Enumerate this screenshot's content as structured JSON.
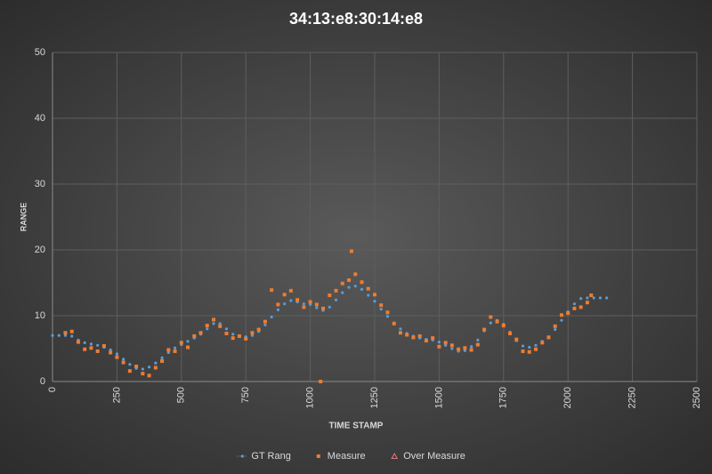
{
  "chart_data": {
    "type": "scatter",
    "title": "34:13:e8:30:14:e8",
    "x_label": "TIME STAMP",
    "y_label": "RANGE",
    "xlim": [
      0,
      2500
    ],
    "xticks": [
      0,
      250,
      500,
      750,
      1000,
      1250,
      1500,
      1750,
      2000,
      2250,
      2500
    ],
    "ylim": [
      0,
      50
    ],
    "yticks": [
      0,
      10,
      20,
      30,
      40,
      50
    ],
    "grid": true,
    "legend": "bottom",
    "series": [
      {
        "name": "GT Rang",
        "color": "#5b9bd5",
        "marker": "circle",
        "x": [
          0,
          25,
          50,
          75,
          100,
          125,
          150,
          175,
          200,
          225,
          250,
          275,
          300,
          325,
          350,
          375,
          400,
          425,
          450,
          475,
          500,
          525,
          550,
          575,
          600,
          625,
          650,
          675,
          700,
          725,
          750,
          775,
          800,
          825,
          850,
          875,
          900,
          925,
          950,
          975,
          1000,
          1025,
          1050,
          1075,
          1100,
          1125,
          1150,
          1175,
          1200,
          1225,
          1250,
          1275,
          1300,
          1325,
          1350,
          1375,
          1400,
          1425,
          1450,
          1475,
          1500,
          1525,
          1550,
          1575,
          1600,
          1625,
          1650,
          1675,
          1700,
          1725,
          1750,
          1775,
          1800,
          1825,
          1850,
          1875,
          1900,
          1925,
          1950,
          1975,
          2000,
          2025,
          2050,
          2075,
          2100,
          2125,
          2150
        ],
        "values": [
          7,
          7,
          7,
          6.9,
          6.3,
          5.9,
          5.7,
          5.5,
          5.2,
          4.8,
          4.2,
          3.4,
          2.6,
          2.0,
          1.9,
          2.2,
          2.8,
          3.6,
          4.4,
          5.1,
          5.6,
          6.1,
          6.6,
          7.2,
          8.0,
          8.8,
          8.8,
          8.0,
          7.2,
          6.8,
          6.8,
          7.0,
          7.6,
          8.6,
          9.8,
          10.9,
          11.8,
          12.3,
          12.1,
          11.8,
          11.7,
          11.2,
          10.8,
          11.3,
          12.4,
          13.5,
          14.3,
          14.5,
          14.0,
          13.1,
          12.2,
          11.0,
          9.9,
          8.9,
          8.0,
          7.3,
          6.9,
          6.6,
          6.4,
          6.3,
          6.0,
          5.5,
          5.0,
          4.6,
          4.7,
          5.3,
          6.3,
          7.7,
          8.9,
          9.3,
          8.7,
          7.5,
          6.2,
          5.4,
          5.2,
          5.5,
          6.1,
          6.8,
          7.9,
          9.3,
          10.6,
          11.8,
          12.6,
          12.7,
          12.7,
          12.7,
          12.7
        ]
      },
      {
        "name": "Measure",
        "color": "#ed7d31",
        "marker": "square",
        "x": [
          50,
          75,
          100,
          125,
          150,
          175,
          200,
          225,
          250,
          275,
          300,
          325,
          350,
          375,
          400,
          425,
          450,
          475,
          500,
          525,
          550,
          575,
          600,
          625,
          650,
          675,
          700,
          725,
          750,
          775,
          800,
          825,
          850,
          875,
          900,
          925,
          950,
          975,
          1000,
          1025,
          1040,
          1050,
          1075,
          1100,
          1125,
          1150,
          1160,
          1175,
          1200,
          1225,
          1250,
          1275,
          1300,
          1325,
          1350,
          1375,
          1400,
          1425,
          1450,
          1475,
          1500,
          1525,
          1550,
          1575,
          1600,
          1625,
          1650,
          1675,
          1700,
          1725,
          1750,
          1775,
          1800,
          1825,
          1850,
          1875,
          1900,
          1925,
          1950,
          1975,
          2000,
          2025,
          2050,
          2075,
          2090
        ],
        "values": [
          7.4,
          7.6,
          6.0,
          4.9,
          5.1,
          4.6,
          5.4,
          4.4,
          3.7,
          2.9,
          1.6,
          2.3,
          1.2,
          0.9,
          2.1,
          3.1,
          4.8,
          4.6,
          5.9,
          5.2,
          6.9,
          7.4,
          8.5,
          9.4,
          8.4,
          7.3,
          6.6,
          6.9,
          6.5,
          7.4,
          7.9,
          9.1,
          13.9,
          11.7,
          13.2,
          13.8,
          12.4,
          11.3,
          12.1,
          11.7,
          0,
          11.1,
          13.1,
          13.8,
          14.9,
          15.4,
          19.8,
          16.3,
          15.1,
          14.1,
          13.2,
          11.6,
          10.5,
          8.8,
          7.4,
          7.1,
          6.7,
          6.9,
          6.2,
          6.6,
          5.3,
          5.9,
          5.5,
          4.9,
          5.1,
          4.8,
          5.6,
          7.9,
          9.8,
          9.1,
          8.5,
          7.3,
          6.4,
          4.6,
          4.5,
          4.9,
          5.9,
          6.7,
          8.4,
          10.1,
          10.4,
          11.1,
          11.3,
          12.0,
          13.1
        ]
      },
      {
        "name": "Over Measure",
        "color": "#e07a7a",
        "marker": "triangle",
        "x": [],
        "values": []
      }
    ]
  }
}
